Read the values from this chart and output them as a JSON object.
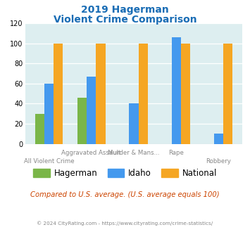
{
  "title_line1": "2019 Hagerman",
  "title_line2": "Violent Crime Comparison",
  "hagerman": [
    30,
    46,
    0,
    0,
    0
  ],
  "idaho": [
    60,
    67,
    40,
    106,
    10
  ],
  "national": [
    100,
    100,
    100,
    100,
    100
  ],
  "hagerman_color": "#7ab648",
  "idaho_color": "#4499ee",
  "national_color": "#f5a623",
  "background_color": "#ddeef0",
  "ylim": [
    0,
    120
  ],
  "yticks": [
    0,
    20,
    40,
    60,
    80,
    100,
    120
  ],
  "title_color": "#1a6db5",
  "subtitle_note": "Compared to U.S. average. (U.S. average equals 100)",
  "subtitle_note_color": "#cc4400",
  "footer": "© 2024 CityRating.com - https://www.cityrating.com/crime-statistics/",
  "footer_color": "#888888",
  "bar_width": 0.22,
  "top_labels": [
    "",
    "Aggravated Assault",
    "Murder & Mans...",
    "Rape",
    ""
  ],
  "bot_labels": [
    "All Violent Crime",
    "",
    "",
    "",
    "Robbery"
  ],
  "legend_labels": [
    "Hagerman",
    "Idaho",
    "National"
  ]
}
